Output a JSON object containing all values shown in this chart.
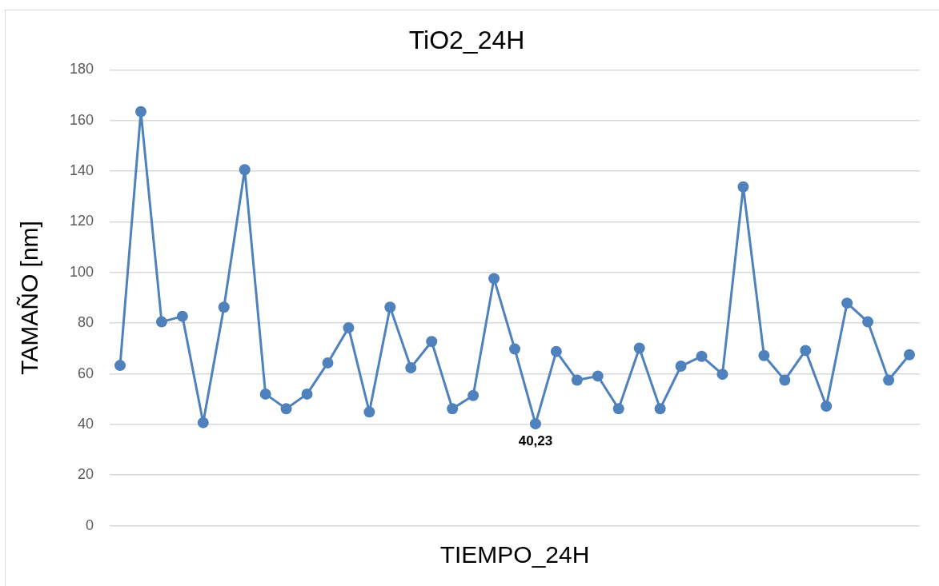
{
  "chart_data": {
    "type": "line",
    "title": "TiO2_24H",
    "xlabel": "TIEMPO_24H",
    "ylabel": "TAMAÑO [nm]",
    "categories": [
      null,
      null,
      null,
      null,
      null,
      null,
      null,
      null,
      null,
      null,
      null,
      null,
      null,
      null,
      null,
      null,
      null,
      null,
      null,
      null,
      null,
      null,
      null,
      null,
      null,
      null,
      null,
      null,
      null,
      null,
      null,
      null,
      null,
      null,
      null,
      null,
      null,
      null,
      null
    ],
    "series": [
      {
        "color": "#4f81bd",
        "values": [
          63.3,
          163.5,
          80.5,
          82.7,
          40.7,
          86.3,
          140.6,
          52,
          46.2,
          52,
          64.3,
          78.2,
          44.9,
          86.3,
          62.4,
          72.7,
          46.2,
          51.4,
          97.6,
          69.8,
          40.23,
          68.8,
          57.5,
          59.1,
          46.2,
          70.1,
          46.2,
          63,
          66.9,
          59.8,
          133.8,
          67.2,
          57.5,
          69.2,
          47.2,
          87.9,
          80.5,
          57.5,
          67.5
        ],
        "value_labels": [
          null,
          null,
          null,
          null,
          null,
          null,
          null,
          null,
          null,
          null,
          null,
          null,
          null,
          null,
          null,
          null,
          null,
          null,
          null,
          null,
          "40,23",
          null,
          null,
          null,
          null,
          null,
          null,
          null,
          null,
          null,
          null,
          null,
          null,
          null,
          null,
          null,
          null,
          null,
          null
        ]
      }
    ],
    "ylim": [
      0,
      180
    ],
    "yticks": [
      0,
      20,
      40,
      60,
      80,
      100,
      120,
      140,
      160,
      180
    ],
    "grid": "y",
    "legend": false,
    "marker": "circle",
    "line_style": "solid"
  }
}
